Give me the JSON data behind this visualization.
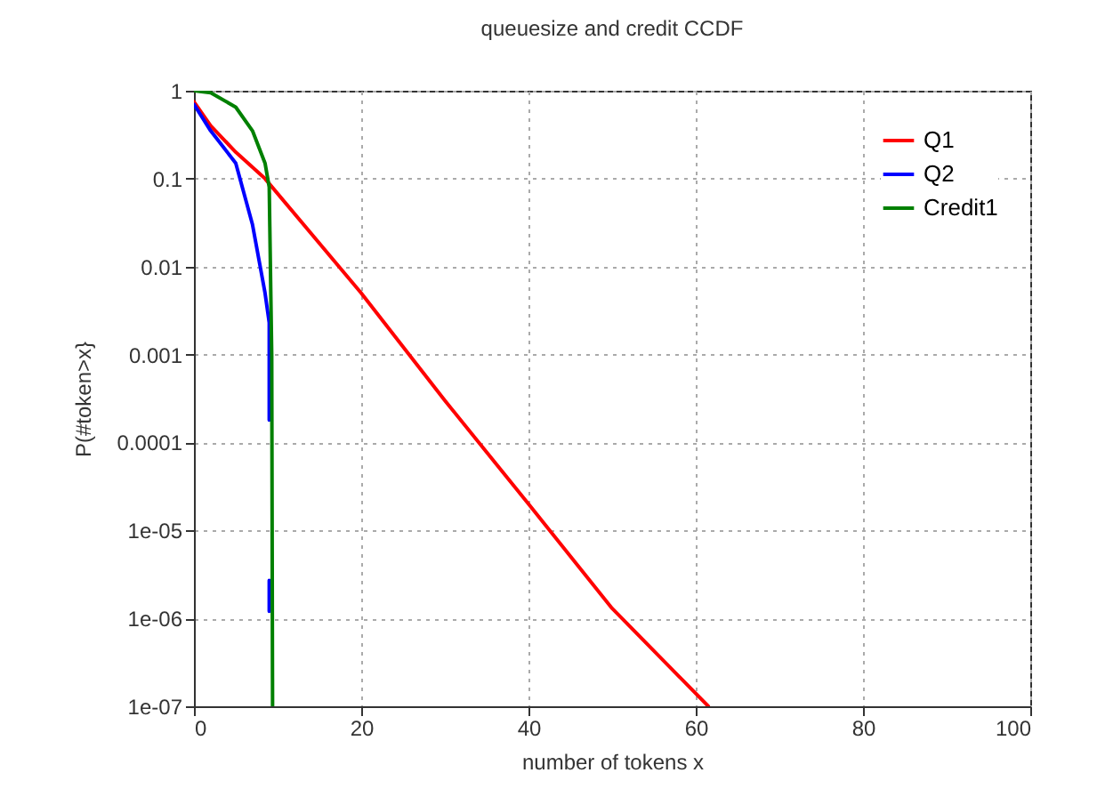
{
  "chart_data": {
    "type": "line",
    "title": "queuesize and credit CCDF",
    "xlabel": "number of tokens x",
    "ylabel": "P(#token>x}",
    "log": "y",
    "xlim": [
      0,
      100
    ],
    "xticks": [
      0,
      20,
      40,
      60,
      80,
      100
    ],
    "ylim": [
      1e-07,
      1
    ],
    "yticks": [
      1,
      0.1,
      0.01,
      0.001,
      0.0001,
      {
        "value": 1e-05,
        "label": "1e-05"
      },
      {
        "value": 1e-06,
        "label": "1e-06"
      },
      {
        "value": 1e-07,
        "label": "1e-07"
      }
    ],
    "grid": true,
    "legend": "top right",
    "marker": "none",
    "line_style": "solid",
    "series": [
      {
        "name": "Q1",
        "color": "#ff0000",
        "x": [
          0,
          2,
          5,
          8.5,
          20,
          30,
          40,
          50,
          61.5
        ],
        "values": [
          0.75,
          0.4,
          0.2,
          0.1,
          0.005,
          0.0003,
          2e-05,
          1.3e-06,
          1e-07
        ]
      },
      {
        "name": "Q2",
        "color": "#0000ff",
        "x": [
          0,
          2,
          5,
          7,
          8.5,
          9,
          9,
          null,
          9,
          9
        ],
        "values": [
          0.7,
          0.35,
          0.15,
          0.03,
          0.005,
          0.0023,
          0.00018,
          null,
          2.7e-06,
          1.2e-06
        ]
      },
      {
        "name": "Credit1",
        "color": "#008000",
        "x": [
          0,
          2,
          5,
          7,
          8.5,
          9,
          9.3,
          9.4
        ],
        "values": [
          1,
          0.95,
          0.65,
          0.35,
          0.15,
          0.08,
          0.001,
          1e-07
        ]
      }
    ]
  }
}
